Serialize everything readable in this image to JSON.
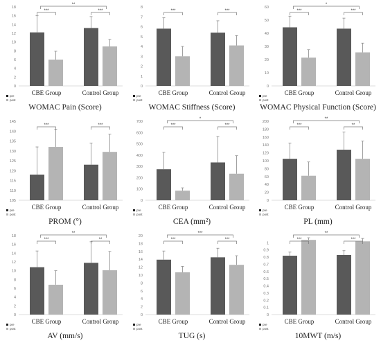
{
  "colors": {
    "pre": "#595959",
    "post": "#b4b4b4",
    "error_bar": "#8a8a8a",
    "bracket": "#777777"
  },
  "chart_data": [
    {
      "type": "bar",
      "title": "WOMAC Pain (Score)",
      "categories": [
        "CBE Group",
        "Control Group"
      ],
      "series": [
        {
          "name": "pre",
          "values": [
            12.2,
            13.2
          ],
          "errors": [
            3.8,
            2.6
          ]
        },
        {
          "name": "post",
          "values": [
            6.0,
            9.0
          ],
          "errors": [
            1.9,
            1.6
          ]
        }
      ],
      "ylim": [
        0,
        18
      ],
      "yticks": [
        "0",
        "2",
        "4",
        "6",
        "8",
        "10",
        "12",
        "14",
        "16",
        "18"
      ],
      "significance": [
        {
          "between": "within-1",
          "label": "***"
        },
        {
          "between": "within-2",
          "label": "***"
        },
        {
          "between": "groups",
          "label": "**"
        }
      ]
    },
    {
      "type": "bar",
      "title": "WOMAC Stiffness (Score)",
      "categories": [
        "CBE Group",
        "Control Group"
      ],
      "series": [
        {
          "name": "pre",
          "values": [
            5.8,
            5.4
          ],
          "errors": [
            1.1,
            1.2
          ]
        },
        {
          "name": "post",
          "values": [
            3.0,
            4.1
          ],
          "errors": [
            1.0,
            1.0
          ]
        }
      ],
      "ylim": [
        0,
        8
      ],
      "yticks": [
        "0",
        "1",
        "2",
        "3",
        "4",
        "5",
        "6",
        "7",
        "8"
      ],
      "significance": [
        {
          "between": "within-1",
          "label": "***"
        },
        {
          "between": "within-2",
          "label": "***"
        }
      ]
    },
    {
      "type": "bar",
      "title": "WOMAC Physical Function (Score)",
      "categories": [
        "CBE Group",
        "Control Group"
      ],
      "series": [
        {
          "name": "pre",
          "values": [
            44.5,
            43.5
          ],
          "errors": [
            8.5,
            8.0
          ]
        },
        {
          "name": "post",
          "values": [
            21.5,
            25.5
          ],
          "errors": [
            6.0,
            7.0
          ]
        }
      ],
      "ylim": [
        0,
        60
      ],
      "yticks": [
        "0",
        "10",
        "20",
        "30",
        "40",
        "50",
        "60"
      ],
      "significance": [
        {
          "between": "within-1",
          "label": "***"
        },
        {
          "between": "within-2",
          "label": "***"
        },
        {
          "between": "groups",
          "label": "*"
        }
      ]
    },
    {
      "type": "bar",
      "title": "PROM (°)",
      "categories": [
        "CBE Group",
        "Control Group"
      ],
      "series": [
        {
          "name": "pre",
          "values": [
            118,
            123
          ],
          "errors": [
            14,
            11
          ]
        },
        {
          "name": "post",
          "values": [
            132,
            129.5
          ],
          "errors": [
            9,
            9
          ]
        }
      ],
      "ylim": [
        105,
        145
      ],
      "yticks": [
        "105",
        "110",
        "115",
        "120",
        "125",
        "130",
        "135",
        "140",
        "145"
      ],
      "significance": [
        {
          "between": "within-1",
          "label": "***"
        },
        {
          "between": "within-2",
          "label": "***"
        }
      ]
    },
    {
      "type": "bar",
      "title": "CEA (mm²)",
      "categories": [
        "CBE Group",
        "Control Group"
      ],
      "series": [
        {
          "name": "pre",
          "values": [
            275,
            335
          ],
          "errors": [
            150,
            230
          ]
        },
        {
          "name": "post",
          "values": [
            85,
            235
          ],
          "errors": [
            25,
            160
          ]
        }
      ],
      "ylim": [
        0,
        700
      ],
      "yticks": [
        "0",
        "100",
        "200",
        "300",
        "400",
        "500",
        "600",
        "700"
      ],
      "significance": [
        {
          "between": "within-1",
          "label": "***"
        },
        {
          "between": "within-2",
          "label": "***"
        },
        {
          "between": "groups",
          "label": "*"
        }
      ]
    },
    {
      "type": "bar",
      "title": "PL (mm)",
      "categories": [
        "CBE Group",
        "Control Group"
      ],
      "series": [
        {
          "name": "pre",
          "values": [
            105,
            128
          ],
          "errors": [
            40,
            45
          ]
        },
        {
          "name": "post",
          "values": [
            62,
            105
          ],
          "errors": [
            35,
            45
          ]
        }
      ],
      "ylim": [
        0,
        200
      ],
      "yticks": [
        "0",
        "20",
        "40",
        "60",
        "80",
        "100",
        "120",
        "140",
        "160",
        "180",
        "200"
      ],
      "significance": [
        {
          "between": "within-1",
          "label": "***"
        },
        {
          "between": "within-2",
          "label": "**"
        },
        {
          "between": "groups",
          "label": "**"
        }
      ]
    },
    {
      "type": "bar",
      "title": "AV (mm/s)",
      "categories": [
        "CBE Group",
        "Control Group"
      ],
      "series": [
        {
          "name": "pre",
          "values": [
            10.8,
            11.8
          ],
          "errors": [
            3.7,
            4.8
          ]
        },
        {
          "name": "post",
          "values": [
            6.8,
            10.1
          ],
          "errors": [
            3.2,
            4.3
          ]
        }
      ],
      "ylim": [
        0,
        18
      ],
      "yticks": [
        "0",
        "2",
        "4",
        "6",
        "8",
        "10",
        "12",
        "14",
        "16",
        "18"
      ],
      "significance": [
        {
          "between": "within-1",
          "label": "***"
        },
        {
          "between": "within-2",
          "label": "**"
        },
        {
          "between": "groups",
          "label": "**"
        }
      ]
    },
    {
      "type": "bar",
      "title": "TUG (s)",
      "categories": [
        "CBE Group",
        "Control Group"
      ],
      "series": [
        {
          "name": "pre",
          "values": [
            13.9,
            14.5
          ],
          "errors": [
            2.2,
            2.3
          ]
        },
        {
          "name": "post",
          "values": [
            10.7,
            12.6
          ],
          "errors": [
            1.5,
            2.3
          ]
        }
      ],
      "ylim": [
        0,
        20
      ],
      "yticks": [
        "0",
        "2",
        "4",
        "6",
        "8",
        "10",
        "12",
        "14",
        "16",
        "18",
        "20"
      ],
      "significance": [
        {
          "between": "within-1",
          "label": "***"
        },
        {
          "between": "within-2",
          "label": "***"
        },
        {
          "between": "groups",
          "label": "***"
        }
      ]
    },
    {
      "type": "bar",
      "title": "10MWT (m/s)",
      "categories": [
        "CBE Group",
        "Control Group"
      ],
      "series": [
        {
          "name": "pre",
          "values": [
            0.82,
            0.83
          ],
          "errors": [
            0.05,
            0.06
          ]
        },
        {
          "name": "post",
          "values": [
            1.04,
            1.02
          ],
          "errors": [
            0.03,
            0.04
          ]
        }
      ],
      "ylim": [
        0,
        1.1
      ],
      "yticks": [
        "0",
        "0.1",
        "0.2",
        "0.3",
        "0.4",
        "0.5",
        "0.6",
        "0.7",
        "0.8",
        "0.9",
        "1",
        ""
      ],
      "significance": [
        {
          "between": "within-1",
          "label": "***"
        },
        {
          "between": "within-2",
          "label": "***"
        },
        {
          "between": "groups",
          "label": "**"
        }
      ]
    }
  ]
}
